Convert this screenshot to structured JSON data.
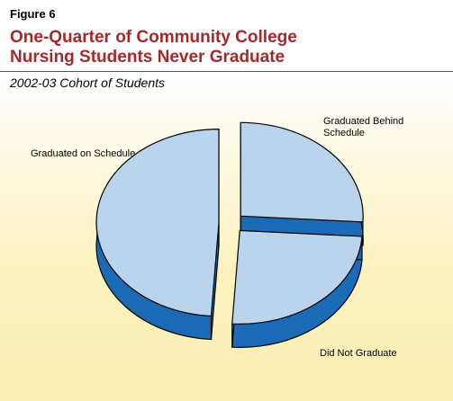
{
  "chart_data": {
    "type": "pie",
    "figure": "Figure 6",
    "title": "One-Quarter of Community College Nursing Students Never Graduate",
    "subtitle": "2002-03 Cohort of Students",
    "categories": [
      "Graduated Behind Schedule",
      "Did Not Graduate",
      "Graduated on Schedule"
    ],
    "values": [
      26,
      25,
      49
    ],
    "color": "#b9d4ec",
    "side_color": "#1b6bb6"
  }
}
